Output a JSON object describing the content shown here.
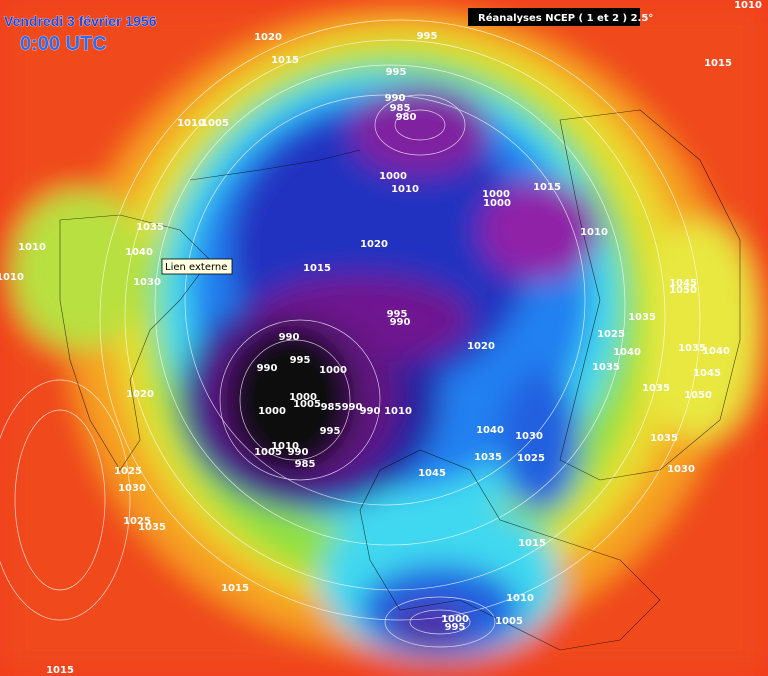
{
  "header": {
    "title": "Vendredi 3 février 1956",
    "time": "0:00 UTC",
    "source": "Réanalyses NCEP ( 1 et 2 ) 2.5°"
  },
  "tooltip": "Lien externe",
  "isobar_labels": [
    1020,
    1015,
    995,
    995,
    990,
    985,
    980,
    1010,
    1005,
    1010,
    1015,
    1000,
    1010,
    1000,
    1000,
    1015,
    1020,
    1010,
    1035,
    1040,
    1010,
    1010,
    1030,
    1015,
    995,
    990,
    1045,
    1050,
    990,
    995,
    990,
    1000,
    1035,
    1025,
    1040,
    1035,
    1040,
    1035,
    1045,
    1020,
    1020,
    1000,
    1005,
    985,
    990,
    990,
    1000,
    1010,
    1035,
    1050,
    995,
    1040,
    1030,
    1010,
    1005,
    990,
    985,
    1035,
    1025,
    1035,
    1030,
    1045,
    1025,
    1030,
    1025,
    1035,
    1015,
    1015,
    1010,
    1000,
    995,
    1005,
    1015
  ]
}
